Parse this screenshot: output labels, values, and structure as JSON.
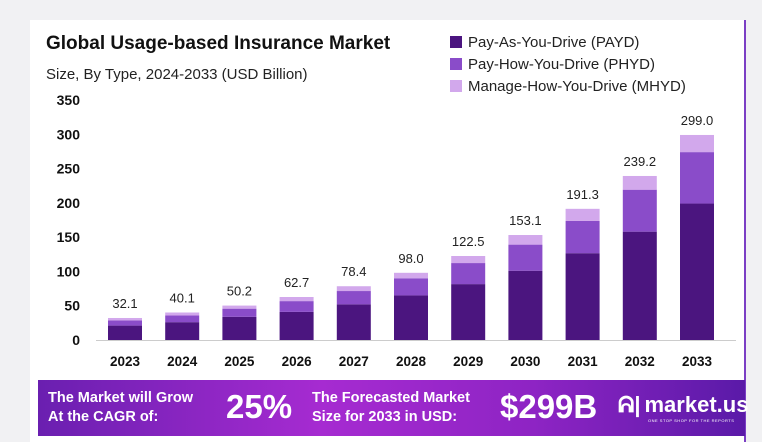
{
  "chart_data": {
    "type": "bar",
    "stacked": true,
    "title": "Global Usage-based Insurance Market",
    "subtitle": "Size, By Type, 2024-2033 (USD Billion)",
    "xlabel": "",
    "ylabel": "",
    "ylim": [
      0,
      350
    ],
    "yticks": [
      0,
      50,
      100,
      150,
      200,
      250,
      300,
      350
    ],
    "grid": false,
    "legend_position": "top-right",
    "categories": [
      "2023",
      "2024",
      "2025",
      "2026",
      "2027",
      "2028",
      "2029",
      "2030",
      "2031",
      "2032",
      "2033"
    ],
    "series": [
      {
        "name": "Pay-As-You-Drive (PAYD)",
        "color": "#4b157f",
        "values": [
          21.0,
          26.0,
          33.8,
          41.0,
          52.0,
          65.0,
          81.5,
          101.0,
          126.6,
          158.0,
          199.0
        ]
      },
      {
        "name": "Pay-How-You-Drive (PHYD)",
        "color": "#8a4cc9",
        "values": [
          7.5,
          9.7,
          11.9,
          15.7,
          19.4,
          25.0,
          30.7,
          38.1,
          47.0,
          61.2,
          75.0
        ]
      },
      {
        "name": "Manage-How-You-Drive (MHYD)",
        "color": "#d2a8ec",
        "values": [
          3.6,
          4.4,
          4.5,
          6.0,
          7.0,
          8.0,
          10.3,
          14.0,
          17.7,
          20.0,
          25.0
        ]
      }
    ],
    "totals": [
      "32.1",
      "40.1",
      "50.2",
      "62.7",
      "78.4",
      "98.0",
      "122.5",
      "153.1",
      "191.3",
      "239.2",
      "299.0"
    ]
  },
  "footer": {
    "cagr_text_1": "The Market will Grow",
    "cagr_text_2": "At the CAGR of:",
    "cagr_value": "25%",
    "forecast_text_1": "The Forecasted Market",
    "forecast_text_2": "Size for 2033 in USD:",
    "forecast_value": "$299B",
    "logo_text": "market.us",
    "logo_tagline": "ONE STOP SHOP FOR THE REPORTS"
  }
}
